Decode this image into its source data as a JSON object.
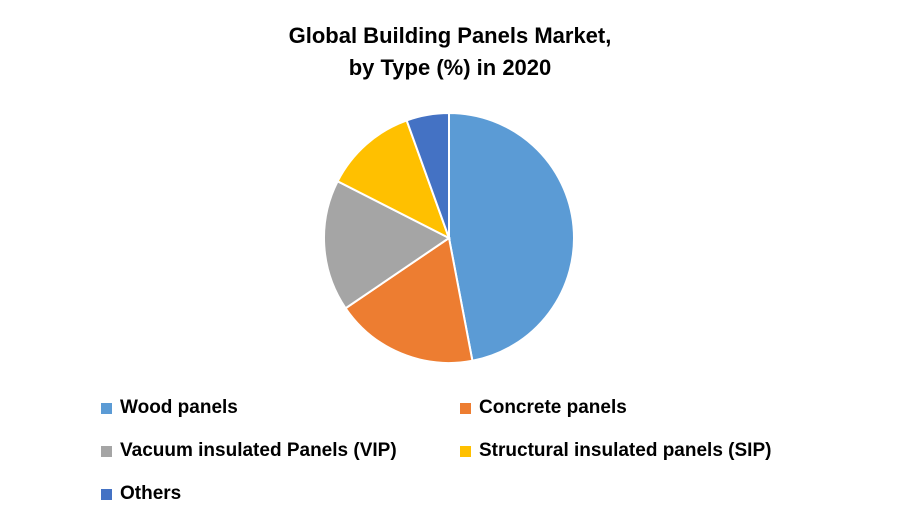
{
  "chart_data": {
    "type": "pie",
    "title": "Global Building Panels Market, by Type (%) in 2020",
    "title_lines": [
      "Global Building Panels Market,",
      "by Type (%) in 2020"
    ],
    "categories": [
      "Wood panels",
      "Concrete panels",
      "Vacuum insulated Panels (VIP)",
      "Structural insulated panels (SIP)",
      "Others"
    ],
    "values": [
      47,
      18.5,
      17,
      12,
      5.5
    ],
    "colors": [
      "#5B9BD5",
      "#ED7D31",
      "#A5A5A5",
      "#FFC000",
      "#4472C4"
    ],
    "legend_position": "bottom",
    "start_angle_deg": 0,
    "direction": "clockwise"
  },
  "legend": {
    "items": [
      {
        "label": "Wood panels",
        "color": "#5B9BD5"
      },
      {
        "label": "Concrete panels",
        "color": "#ED7D31"
      },
      {
        "label": "Vacuum insulated Panels (VIP)",
        "color": "#A5A5A5"
      },
      {
        "label": "Structural insulated panels (SIP)",
        "color": "#FFC000"
      },
      {
        "label": "Others",
        "color": "#4472C4"
      }
    ]
  }
}
